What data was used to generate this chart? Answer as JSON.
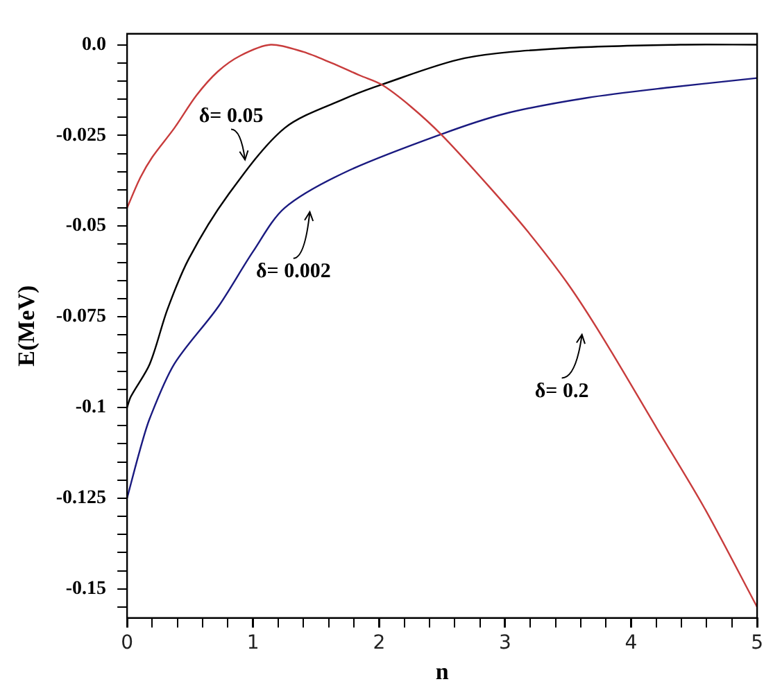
{
  "chart_data": {
    "type": "line",
    "xlabel": "n",
    "ylabel": "E(MeV)",
    "xlim": [
      0,
      5
    ],
    "ylim": [
      -0.158,
      0.003
    ],
    "xticks": [
      0,
      {
        "value": 0.2,
        "label": null
      },
      {
        "value": 0.4,
        "label": null
      },
      {
        "value": 0.6,
        "label": null
      },
      {
        "value": 0.8,
        "label": null
      },
      1,
      {
        "value": 1.2,
        "label": null
      },
      {
        "value": 1.4,
        "label": null
      },
      {
        "value": 1.6,
        "label": null
      },
      {
        "value": 1.8,
        "label": null
      },
      2,
      {
        "value": 2.2,
        "label": null
      },
      {
        "value": 2.4,
        "label": null
      },
      {
        "value": 2.6,
        "label": null
      },
      {
        "value": 2.8,
        "label": null
      },
      3,
      {
        "value": 3.2,
        "label": null
      },
      {
        "value": 3.4,
        "label": null
      },
      {
        "value": 3.6,
        "label": null
      },
      {
        "value": 3.8,
        "label": null
      },
      4,
      {
        "value": 4.2,
        "label": null
      },
      {
        "value": 4.4,
        "label": null
      },
      {
        "value": 4.6,
        "label": null
      },
      {
        "value": 4.8,
        "label": null
      },
      5
    ],
    "yticks": [
      {
        "value": 0,
        "label": "0.0"
      },
      {
        "value": -0.005,
        "label": null
      },
      {
        "value": -0.01,
        "label": null
      },
      {
        "value": -0.015,
        "label": null
      },
      {
        "value": -0.02,
        "label": null
      },
      -0.025,
      {
        "value": -0.03,
        "label": null
      },
      {
        "value": -0.035,
        "label": null
      },
      {
        "value": -0.04,
        "label": null
      },
      {
        "value": -0.045,
        "label": null
      },
      -0.05,
      {
        "value": -0.055,
        "label": null
      },
      {
        "value": -0.06,
        "label": null
      },
      {
        "value": -0.065,
        "label": null
      },
      {
        "value": -0.07,
        "label": null
      },
      -0.075,
      {
        "value": -0.08,
        "label": null
      },
      {
        "value": -0.085,
        "label": null
      },
      {
        "value": -0.09,
        "label": null
      },
      {
        "value": -0.095,
        "label": null
      },
      -0.1,
      {
        "value": -0.105,
        "label": null
      },
      {
        "value": -0.11,
        "label": null
      },
      {
        "value": -0.115,
        "label": null
      },
      {
        "value": -0.12,
        "label": null
      },
      -0.125,
      {
        "value": -0.13,
        "label": null
      },
      {
        "value": -0.135,
        "label": null
      },
      {
        "value": -0.14,
        "label": null
      },
      {
        "value": -0.145,
        "label": null
      },
      -0.15,
      {
        "value": -0.155,
        "label": null
      }
    ],
    "grid": false,
    "legend": false,
    "marker": "none",
    "line_style": "solid",
    "series": [
      {
        "color": "#c83c3c",
        "x": [
          0,
          0.1,
          0.2,
          0.375,
          0.55,
          0.72,
          0.9,
          1.14,
          1.4,
          1.62,
          1.85,
          2.02,
          2.25,
          2.5,
          2.87,
          3.18,
          3.5,
          3.78,
          4.2,
          4.58,
          5
        ],
        "values": [
          -0.045,
          -0.037,
          -0.031,
          -0.023,
          -0.014,
          -0.0074,
          -0.003,
          0,
          -0.002,
          -0.005,
          -0.0085,
          -0.011,
          -0.017,
          -0.025,
          -0.039,
          -0.0515,
          -0.066,
          -0.081,
          -0.1055,
          -0.1276,
          -0.155
        ]
      },
      {
        "color": "#000000",
        "x": [
          0,
          0.03,
          0.18,
          0.32,
          0.49,
          0.8,
          1.25,
          1.74,
          2.02,
          2.68,
          3.44,
          4.39,
          5
        ],
        "values": [
          -0.1,
          -0.097,
          -0.088,
          -0.073,
          -0.059,
          -0.0415,
          -0.023,
          -0.0147,
          -0.011,
          -0.0037,
          -0.001,
          0,
          0
        ]
      },
      {
        "color": "#1a1a80",
        "x": [
          0,
          0.1,
          0.18,
          0.375,
          0.72,
          1.0,
          1.25,
          1.74,
          2.5,
          3.0,
          3.64,
          4.3,
          5
        ],
        "values": [
          -0.125,
          -0.112,
          -0.103,
          -0.088,
          -0.0724,
          -0.057,
          -0.045,
          -0.035,
          -0.0246,
          -0.019,
          -0.0147,
          -0.0118,
          -0.0092
        ]
      }
    ],
    "annotations": [
      {
        "text": "δ= 0.05",
        "x": 0.98,
        "y": -0.034
      },
      "δ= 0.002",
      "δ= 0.2"
    ]
  }
}
